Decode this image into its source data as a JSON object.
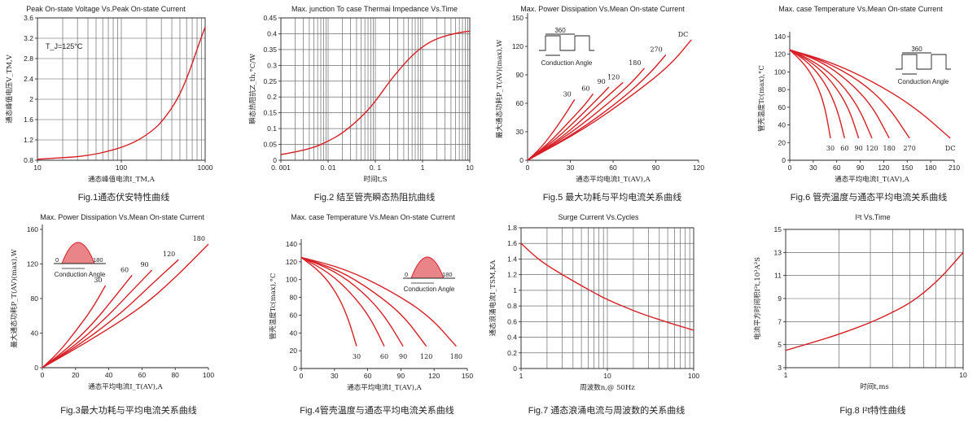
{
  "colors": {
    "curve": "#d71f26",
    "axis": "#222222",
    "grid": "#555555",
    "text": "#222222"
  },
  "chart_data": [
    {
      "type": "line",
      "title": "Peak On-state Voltage Vs.Peak On-state Current",
      "xlabel": "通态峰值电流I_TM,A",
      "ylabel": "通态峰值电压V_TM,V",
      "caption": "Fig.1通态伏安特性曲线",
      "annotation": "T_J=125°C",
      "xscale": "log",
      "xlim": [
        10,
        1000
      ],
      "ylim": [
        0.8,
        3.6
      ],
      "xticks": [
        10,
        100,
        1000
      ],
      "xtick_labels": [
        "10",
        "100",
        "1000"
      ],
      "yticks": [
        0.8,
        1.2,
        1.6,
        2.0,
        2.4,
        2.8,
        3.2,
        3.6
      ],
      "ytick_labels": [
        "0.8",
        "1.2",
        "1.6",
        "2",
        "2.4",
        "2.8",
        "3.2",
        "3.6"
      ],
      "grid": true,
      "series": [
        {
          "x": [
            10,
            20,
            30,
            50,
            70,
            100,
            150,
            200,
            250,
            300,
            400,
            500,
            600,
            700,
            800,
            900,
            1000
          ],
          "y": [
            0.82,
            0.85,
            0.87,
            0.92,
            0.98,
            1.05,
            1.17,
            1.3,
            1.42,
            1.55,
            1.82,
            2.1,
            2.4,
            2.7,
            2.98,
            3.22,
            3.42
          ]
        }
      ]
    },
    {
      "type": "line",
      "title": "Max. junction To case Thermai Impedance Vs.Time",
      "xlabel": "时间t,S",
      "ylabel": "瞬态热阻抗Z_th,°C/W",
      "caption": "Fig.2 结至管壳瞬态热阻抗曲线",
      "xscale": "log",
      "xlim": [
        0.001,
        10
      ],
      "ylim": [
        0,
        0.45
      ],
      "xticks": [
        0.001,
        0.01,
        0.1,
        1,
        10
      ],
      "xtick_labels": [
        "0. 001",
        "0. 01",
        "0. 1",
        "1",
        "10"
      ],
      "yticks": [
        0,
        0.05,
        0.1,
        0.15,
        0.2,
        0.25,
        0.3,
        0.35,
        0.4,
        0.45
      ],
      "ytick_labels": [
        "0",
        "0.05",
        "0.1",
        "0.15",
        "0.2",
        "0.25",
        "0.3",
        "0.35",
        "0.4",
        "0.45"
      ],
      "grid": true,
      "series": [
        {
          "x": [
            0.001,
            0.002,
            0.005,
            0.01,
            0.02,
            0.05,
            0.1,
            0.2,
            0.5,
            1,
            2,
            5,
            10
          ],
          "y": [
            0.018,
            0.026,
            0.04,
            0.06,
            0.085,
            0.135,
            0.185,
            0.25,
            0.32,
            0.36,
            0.385,
            0.402,
            0.408
          ]
        }
      ]
    },
    {
      "type": "line",
      "title": "Max. Power Dissipation Vs.Mean On-state Current",
      "xlabel": "通态平均电流I_T(AV),A",
      "ylabel": "最大通态功耗P_T(AV)(max),W",
      "caption": "Fig.5 最大功耗与平均电流关系曲线",
      "inset_label": "Conduction Angle",
      "inset_value": "360",
      "xlim": [
        0,
        120
      ],
      "ylim": [
        0,
        150
      ],
      "xticks": [
        0,
        30,
        60,
        90,
        120
      ],
      "yticks": [
        0,
        30,
        60,
        90,
        120,
        150
      ],
      "grid": false,
      "series": [
        {
          "name": "30",
          "x": [
            0,
            10,
            20,
            28,
            33
          ],
          "y": [
            0,
            14,
            34,
            52,
            64
          ]
        },
        {
          "name": "60",
          "x": [
            0,
            15,
            30,
            40,
            46
          ],
          "y": [
            0,
            18,
            42,
            58,
            70
          ]
        },
        {
          "name": "90",
          "x": [
            0,
            20,
            38,
            50,
            57
          ],
          "y": [
            0,
            22,
            48,
            66,
            77
          ]
        },
        {
          "name": "120",
          "x": [
            0,
            25,
            45,
            58,
            67
          ],
          "y": [
            0,
            25,
            52,
            70,
            82
          ]
        },
        {
          "name": "180",
          "x": [
            0,
            30,
            55,
            72,
            82
          ],
          "y": [
            0,
            28,
            58,
            80,
            97
          ]
        },
        {
          "name": "270",
          "x": [
            0,
            35,
            65,
            85,
            97
          ],
          "y": [
            0,
            30,
            63,
            90,
            111
          ]
        },
        {
          "name": "DC",
          "x": [
            0,
            40,
            75,
            100,
            115
          ],
          "y": [
            0,
            33,
            70,
            100,
            127
          ]
        }
      ]
    },
    {
      "type": "line",
      "title": "Max. case Temperature Vs.Mean On-state Current",
      "xlabel": "通态平均电流I_T(AV),A",
      "ylabel": "管壳温度Tc(max),°C",
      "caption": "Fig.6 管壳温度与通态平均电流关系曲线",
      "inset_label": "Conduction Angle",
      "inset_value": "360",
      "xlim": [
        0,
        210
      ],
      "ylim": [
        0,
        140
      ],
      "xticks": [
        0,
        30,
        60,
        90,
        120,
        150,
        180,
        210
      ],
      "yticks": [
        0,
        20,
        40,
        60,
        80,
        100,
        120,
        140
      ],
      "grid": false,
      "series": [
        {
          "name": "30",
          "x": [
            0,
            20,
            35,
            45,
            52
          ],
          "y": [
            125,
            108,
            86,
            60,
            25
          ]
        },
        {
          "name": "60",
          "x": [
            0,
            25,
            45,
            60,
            70
          ],
          "y": [
            125,
            110,
            88,
            60,
            25
          ]
        },
        {
          "name": "90",
          "x": [
            0,
            30,
            55,
            75,
            88
          ],
          "y": [
            125,
            110,
            88,
            60,
            25
          ]
        },
        {
          "name": "120",
          "x": [
            0,
            35,
            65,
            88,
            105
          ],
          "y": [
            125,
            110,
            88,
            60,
            25
          ]
        },
        {
          "name": "180",
          "x": [
            0,
            40,
            75,
            105,
            127
          ],
          "y": [
            125,
            112,
            90,
            62,
            25
          ]
        },
        {
          "name": "270",
          "x": [
            0,
            45,
            90,
            125,
            153
          ],
          "y": [
            125,
            112,
            90,
            62,
            25
          ]
        },
        {
          "name": "DC",
          "x": [
            0,
            50,
            105,
            160,
            205
          ],
          "y": [
            125,
            112,
            90,
            60,
            25
          ]
        }
      ]
    },
    {
      "type": "line",
      "title": "Max. Power Dissipation Vs.Mean On-state Current",
      "xlabel": "通态平均电流I_T(AV),A",
      "ylabel": "最大通态功耗P_T(AV)(max),W",
      "caption": "Fig.3最大功耗与平均电流关系曲线",
      "inset_label": "Conduction Angle",
      "inset_values": [
        "0",
        "180"
      ],
      "xlim": [
        0,
        100
      ],
      "ylim": [
        0,
        160
      ],
      "xticks": [
        0,
        20,
        40,
        60,
        80,
        100
      ],
      "yticks": [
        0,
        40,
        80,
        120,
        160
      ],
      "grid": false,
      "series": [
        {
          "name": "30",
          "x": [
            0,
            10,
            20,
            30,
            38
          ],
          "y": [
            0,
            18,
            42,
            68,
            95
          ]
        },
        {
          "name": "60",
          "x": [
            0,
            15,
            30,
            42,
            54
          ],
          "y": [
            0,
            22,
            50,
            78,
            107
          ]
        },
        {
          "name": "90",
          "x": [
            0,
            20,
            38,
            52,
            66
          ],
          "y": [
            0,
            26,
            57,
            85,
            113
          ]
        },
        {
          "name": "120",
          "x": [
            0,
            25,
            48,
            65,
            82
          ],
          "y": [
            0,
            30,
            64,
            95,
            125
          ]
        },
        {
          "name": "180",
          "x": [
            0,
            30,
            60,
            80,
            100
          ],
          "y": [
            0,
            33,
            70,
            104,
            143
          ]
        }
      ]
    },
    {
      "type": "line",
      "title": "Max. case Temperature Vs.Mean On-state Current",
      "xlabel": "通态平均电流I_T(AV),A",
      "ylabel": "管壳温度Tc(max),°C",
      "caption": "Fig.4管壳温度与通态平均电流关系曲线",
      "inset_label": "Conduction Angle",
      "inset_values": [
        "0",
        "180"
      ],
      "xlim": [
        0,
        150
      ],
      "ylim": [
        0,
        140
      ],
      "xticks": [
        0,
        30,
        60,
        90,
        120,
        150
      ],
      "yticks": [
        0,
        20,
        40,
        60,
        80,
        100,
        120,
        140
      ],
      "grid": false,
      "series": [
        {
          "name": "30",
          "x": [
            0,
            18,
            32,
            42,
            50
          ],
          "y": [
            125,
            108,
            85,
            58,
            25
          ]
        },
        {
          "name": "60",
          "x": [
            0,
            25,
            45,
            62,
            75
          ],
          "y": [
            125,
            108,
            85,
            58,
            25
          ]
        },
        {
          "name": "90",
          "x": [
            0,
            30,
            55,
            75,
            92
          ],
          "y": [
            125,
            110,
            87,
            60,
            25
          ]
        },
        {
          "name": "120",
          "x": [
            0,
            35,
            65,
            92,
            113
          ],
          "y": [
            125,
            110,
            87,
            60,
            25
          ]
        },
        {
          "name": "180",
          "x": [
            0,
            40,
            80,
            115,
            140
          ],
          "y": [
            125,
            112,
            88,
            60,
            25
          ]
        }
      ]
    },
    {
      "type": "line",
      "title": "Surge Current Vs.Cycles",
      "xlabel": "周波数n,@ 50Hz",
      "ylabel": "通态浪涌电流I_TSM,KA",
      "caption": "Fig.7 通态浪涌电流与周波数的关系曲线",
      "xscale": "log",
      "xlim": [
        1,
        100
      ],
      "ylim": [
        0,
        1.8
      ],
      "xticks": [
        1,
        10,
        100
      ],
      "xtick_labels": [
        "1",
        "10",
        "100"
      ],
      "yticks": [
        0,
        0.2,
        0.4,
        0.6,
        0.8,
        1.0,
        1.2,
        1.4,
        1.6,
        1.8
      ],
      "ytick_labels": [
        "0",
        "0.2",
        "0.4",
        "0.6",
        "0.8",
        "1",
        "1.2",
        "1.4",
        "1.6",
        "1.8"
      ],
      "grid": true,
      "series": [
        {
          "x": [
            1,
            1.5,
            2,
            3,
            5,
            7,
            10,
            20,
            30,
            50,
            70,
            100
          ],
          "y": [
            1.6,
            1.42,
            1.32,
            1.2,
            1.06,
            0.97,
            0.88,
            0.74,
            0.67,
            0.59,
            0.54,
            0.49
          ]
        }
      ]
    },
    {
      "type": "line",
      "title": "I²t  Vs.Time",
      "xlabel": "时间t,ms",
      "ylabel": "电流平方时间积I²t,10³A²S",
      "caption": "Fig.8 I²t特性曲线",
      "xscale": "log",
      "xlim": [
        1,
        10
      ],
      "ylim": [
        3,
        15
      ],
      "xticks": [
        1,
        10
      ],
      "xtick_labels": [
        "1",
        "10"
      ],
      "yticks": [
        3,
        5,
        7,
        9,
        11,
        13,
        15
      ],
      "ytick_labels": [
        "3",
        "5",
        "7",
        "9",
        "11",
        "13",
        "15"
      ],
      "grid": true,
      "series": [
        {
          "x": [
            1,
            1.5,
            2,
            3,
            4,
            5,
            6,
            7,
            8,
            9,
            10
          ],
          "y": [
            4.5,
            5.3,
            5.9,
            6.9,
            7.8,
            8.6,
            9.5,
            10.4,
            11.3,
            12.2,
            13.0
          ]
        }
      ]
    }
  ]
}
